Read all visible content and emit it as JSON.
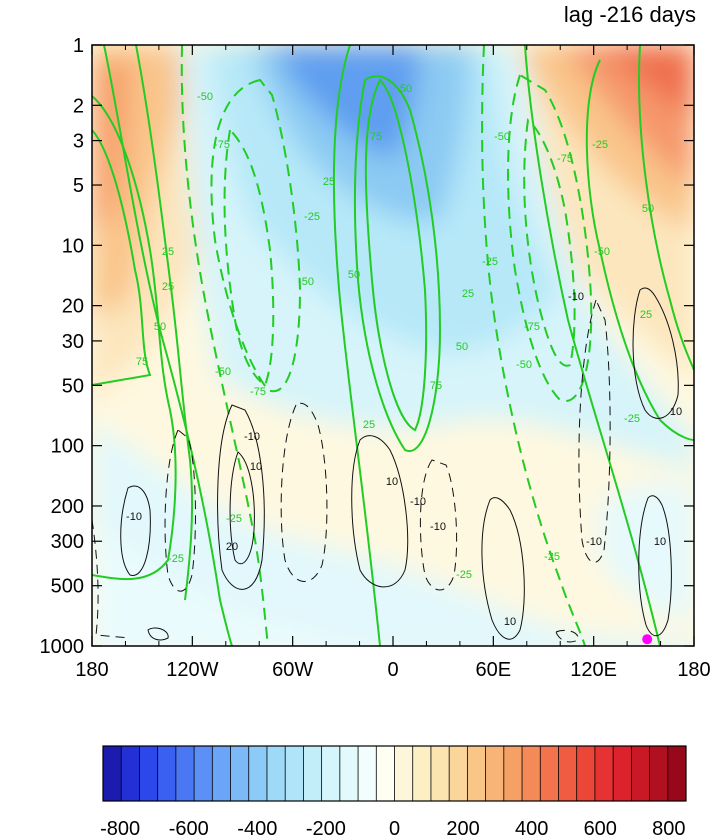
{
  "chart_data": {
    "type": "heatmap",
    "title": "lag -216 days",
    "xlabel": "",
    "ylabel": "",
    "x_ticks": [
      "180",
      "120W",
      "60W",
      "0",
      "60E",
      "120E",
      "180"
    ],
    "x_tick_values": [
      -180,
      -120,
      -60,
      0,
      60,
      120,
      180
    ],
    "xlim": [
      -180,
      180
    ],
    "y_scale": "log",
    "y_ticks": [
      "1",
      "2",
      "3",
      "5",
      "10",
      "20",
      "30",
      "50",
      "100",
      "200",
      "300",
      "500",
      "1000"
    ],
    "y_tick_values": [
      1,
      2,
      3,
      5,
      10,
      20,
      30,
      50,
      100,
      200,
      300,
      500,
      1000
    ],
    "ylim": [
      1000,
      1
    ],
    "colorbar": {
      "tick_labels": [
        "-800",
        "-600",
        "-400",
        "-200",
        "0",
        "200",
        "400",
        "600",
        "800"
      ],
      "tick_values": [
        -800,
        -600,
        -400,
        -200,
        0,
        200,
        400,
        600,
        800
      ],
      "levels": [
        -850,
        -800,
        -750,
        -700,
        -650,
        -600,
        -550,
        -500,
        -450,
        -400,
        -350,
        -300,
        -250,
        -200,
        -150,
        -100,
        -50,
        0,
        50,
        100,
        150,
        200,
        250,
        300,
        350,
        400,
        450,
        500,
        550,
        600,
        650,
        700,
        750,
        800,
        850
      ],
      "colors": [
        "#1c1bb0",
        "#2230d6",
        "#2c48eb",
        "#3a60f2",
        "#4a78f5",
        "#5b90f7",
        "#6aa5f7",
        "#7cb9f7",
        "#8ccbf7",
        "#9ed9f8",
        "#b0e5f9",
        "#c2eefa",
        "#d3f5fb",
        "#e3fafc",
        "#f2fdfd",
        "#fffef2",
        "#fdf6da",
        "#fcefc4",
        "#fbe4b0",
        "#fad69a",
        "#f9c688",
        "#f8b476",
        "#f6a066",
        "#f48a58",
        "#f2734c",
        "#ef5c42",
        "#ec4639",
        "#e63232",
        "#dc222c",
        "#c91826",
        "#b01020",
        "#96081a"
      ]
    },
    "contour_labels_green": [
      "25",
      "50",
      "75",
      "-25",
      "-50",
      "-75"
    ],
    "contour_labels_black": [
      "10",
      "-10",
      "20"
    ],
    "marker": {
      "lon": 152,
      "p": 925,
      "color": "#ff00ff"
    }
  }
}
